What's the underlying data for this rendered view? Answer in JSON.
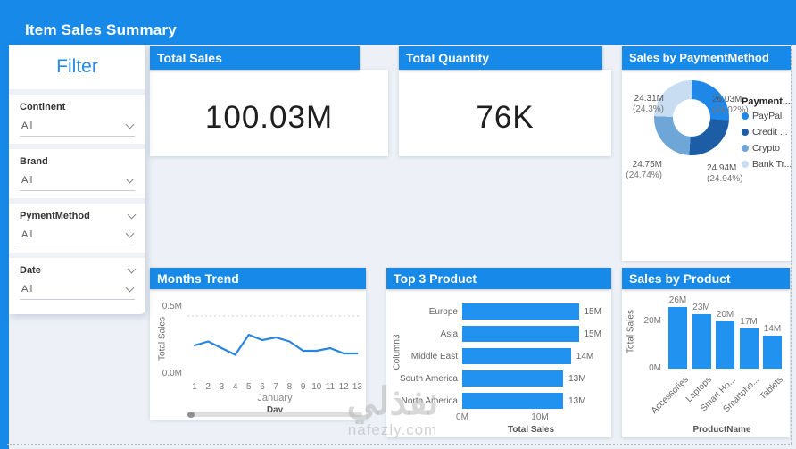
{
  "header": {
    "title": "Item Sales Summary"
  },
  "filter": {
    "title": "Filter",
    "sections": [
      {
        "label": "Continent",
        "value": "All",
        "label_chevron": false
      },
      {
        "label": "Brand",
        "value": "All",
        "label_chevron": false
      },
      {
        "label": "PymentMethod",
        "value": "All",
        "label_chevron": true
      },
      {
        "label": "Date",
        "value": "All",
        "label_chevron": true
      }
    ]
  },
  "kpis": [
    {
      "title": "Total Sales",
      "value": "100.03M"
    },
    {
      "title": "Total Quantity",
      "value": "76K"
    }
  ],
  "colors": {
    "accent": "#1789e8",
    "bar": "#2192f0",
    "line": "#2a85de",
    "gridline": "#cfcfcf"
  },
  "watermark": {
    "arabic": "نفذلي",
    "domain": "nafezly.com"
  },
  "chart_data": [
    {
      "id": "payment_donut",
      "type": "pie",
      "title": "Sales by PaymentMethod",
      "legend_title": "Payment...",
      "legend_position": "right",
      "slices": [
        {
          "label": "PayPal",
          "value": 26.03,
          "pct": 26.02,
          "value_label": "26.03M",
          "pct_label": "(26.02%)",
          "color": "#1e87e8"
        },
        {
          "label": "Credit ...",
          "value": 24.94,
          "pct": 24.94,
          "value_label": "24.94M",
          "pct_label": "(24.94%)",
          "color": "#1c5da6"
        },
        {
          "label": "Crypto",
          "value": 24.75,
          "pct": 24.74,
          "value_label": "24.75M",
          "pct_label": "(24.74%)",
          "color": "#6fa6d8"
        },
        {
          "label": "Bank Tr...",
          "value": 24.31,
          "pct": 24.3,
          "value_label": "24.31M",
          "pct_label": "(24.3%)",
          "color": "#c9ddf2"
        }
      ]
    },
    {
      "id": "months_trend",
      "type": "line",
      "title": "Months Trend",
      "xlabel": "Day",
      "x_group_label": "January",
      "ylabel": "Total Sales",
      "x": [
        1,
        2,
        3,
        4,
        5,
        6,
        7,
        8,
        9,
        10,
        11,
        12,
        13
      ],
      "values": [
        0.28,
        0.31,
        0.26,
        0.21,
        0.36,
        0.32,
        0.34,
        0.31,
        0.24,
        0.24,
        0.26,
        0.22,
        0.22
      ],
      "ylim": [
        0,
        0.5
      ],
      "yticks": [
        {
          "label": "0.0M",
          "value": 0
        },
        {
          "label": "0.5M",
          "value": 0.5
        }
      ],
      "grid": "top-dashed-only",
      "has_scrollbar": true
    },
    {
      "id": "top3_product",
      "type": "bar-horizontal",
      "title": "Top 3 Product",
      "xlabel": "Total Sales",
      "ylabel": "Column3",
      "categories": [
        "Europe",
        "Asia",
        "Middle East",
        "South America",
        "North America"
      ],
      "values": [
        15,
        15,
        14,
        13,
        13
      ],
      "value_labels": [
        "15M",
        "15M",
        "14M",
        "13M",
        "13M"
      ],
      "xticks": [
        {
          "label": "0M",
          "value": 0
        },
        {
          "label": "10M",
          "value": 10
        }
      ],
      "xlim": [
        0,
        17
      ]
    },
    {
      "id": "sales_by_product",
      "type": "bar",
      "title": "Sales by Product",
      "xlabel": "ProductName",
      "ylabel": "Total Sales",
      "categories": [
        "Accessories",
        "Laptops",
        "Smart Ho...",
        "Smartpho...",
        "Tablets"
      ],
      "values": [
        26,
        23,
        20,
        17,
        14
      ],
      "value_labels": [
        "26M",
        "23M",
        "20M",
        "17M",
        "14M"
      ],
      "yticks": [
        {
          "label": "0M",
          "value": 0
        },
        {
          "label": "20M",
          "value": 20
        }
      ],
      "ylim": [
        0,
        27
      ]
    }
  ]
}
